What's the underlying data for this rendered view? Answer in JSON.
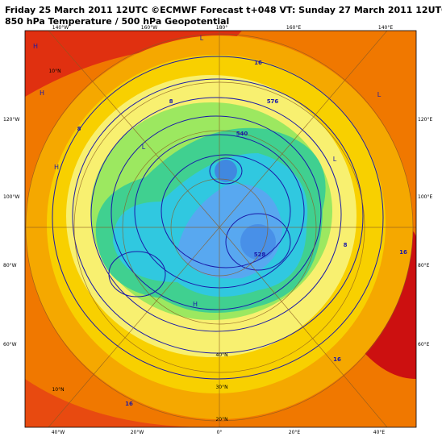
{
  "header": {
    "line1": "Friday 25 March 2011 12UTC ©ECMWF Forecast t+048 VT: Sunday 27 March 2011 12UTC",
    "line2": "850 hPa Temperature / 500 hPa Geopotential"
  },
  "longitude_labels": {
    "top": [
      "140°W",
      "160°W",
      "180°",
      "160°E",
      "140°E"
    ],
    "bottom": [
      "40°W",
      "20°W",
      "0°",
      "20°E",
      "40°E"
    ],
    "left": [
      "120°W",
      "100°W",
      "80°W",
      "60°W"
    ],
    "right": [
      "120°E",
      "100°E",
      "80°E",
      "60°E"
    ]
  },
  "latitude_labels": [
    "40°N",
    "30°N",
    "20°N",
    "10°N",
    "10°N"
  ],
  "contour_labels": [
    "16",
    "16",
    "16",
    "16",
    "8",
    "8",
    "8",
    "576",
    "540",
    "528"
  ],
  "pressure_labels": [
    "H",
    "H",
    "H",
    "L",
    "L",
    "L",
    "H",
    "L"
  ]
}
